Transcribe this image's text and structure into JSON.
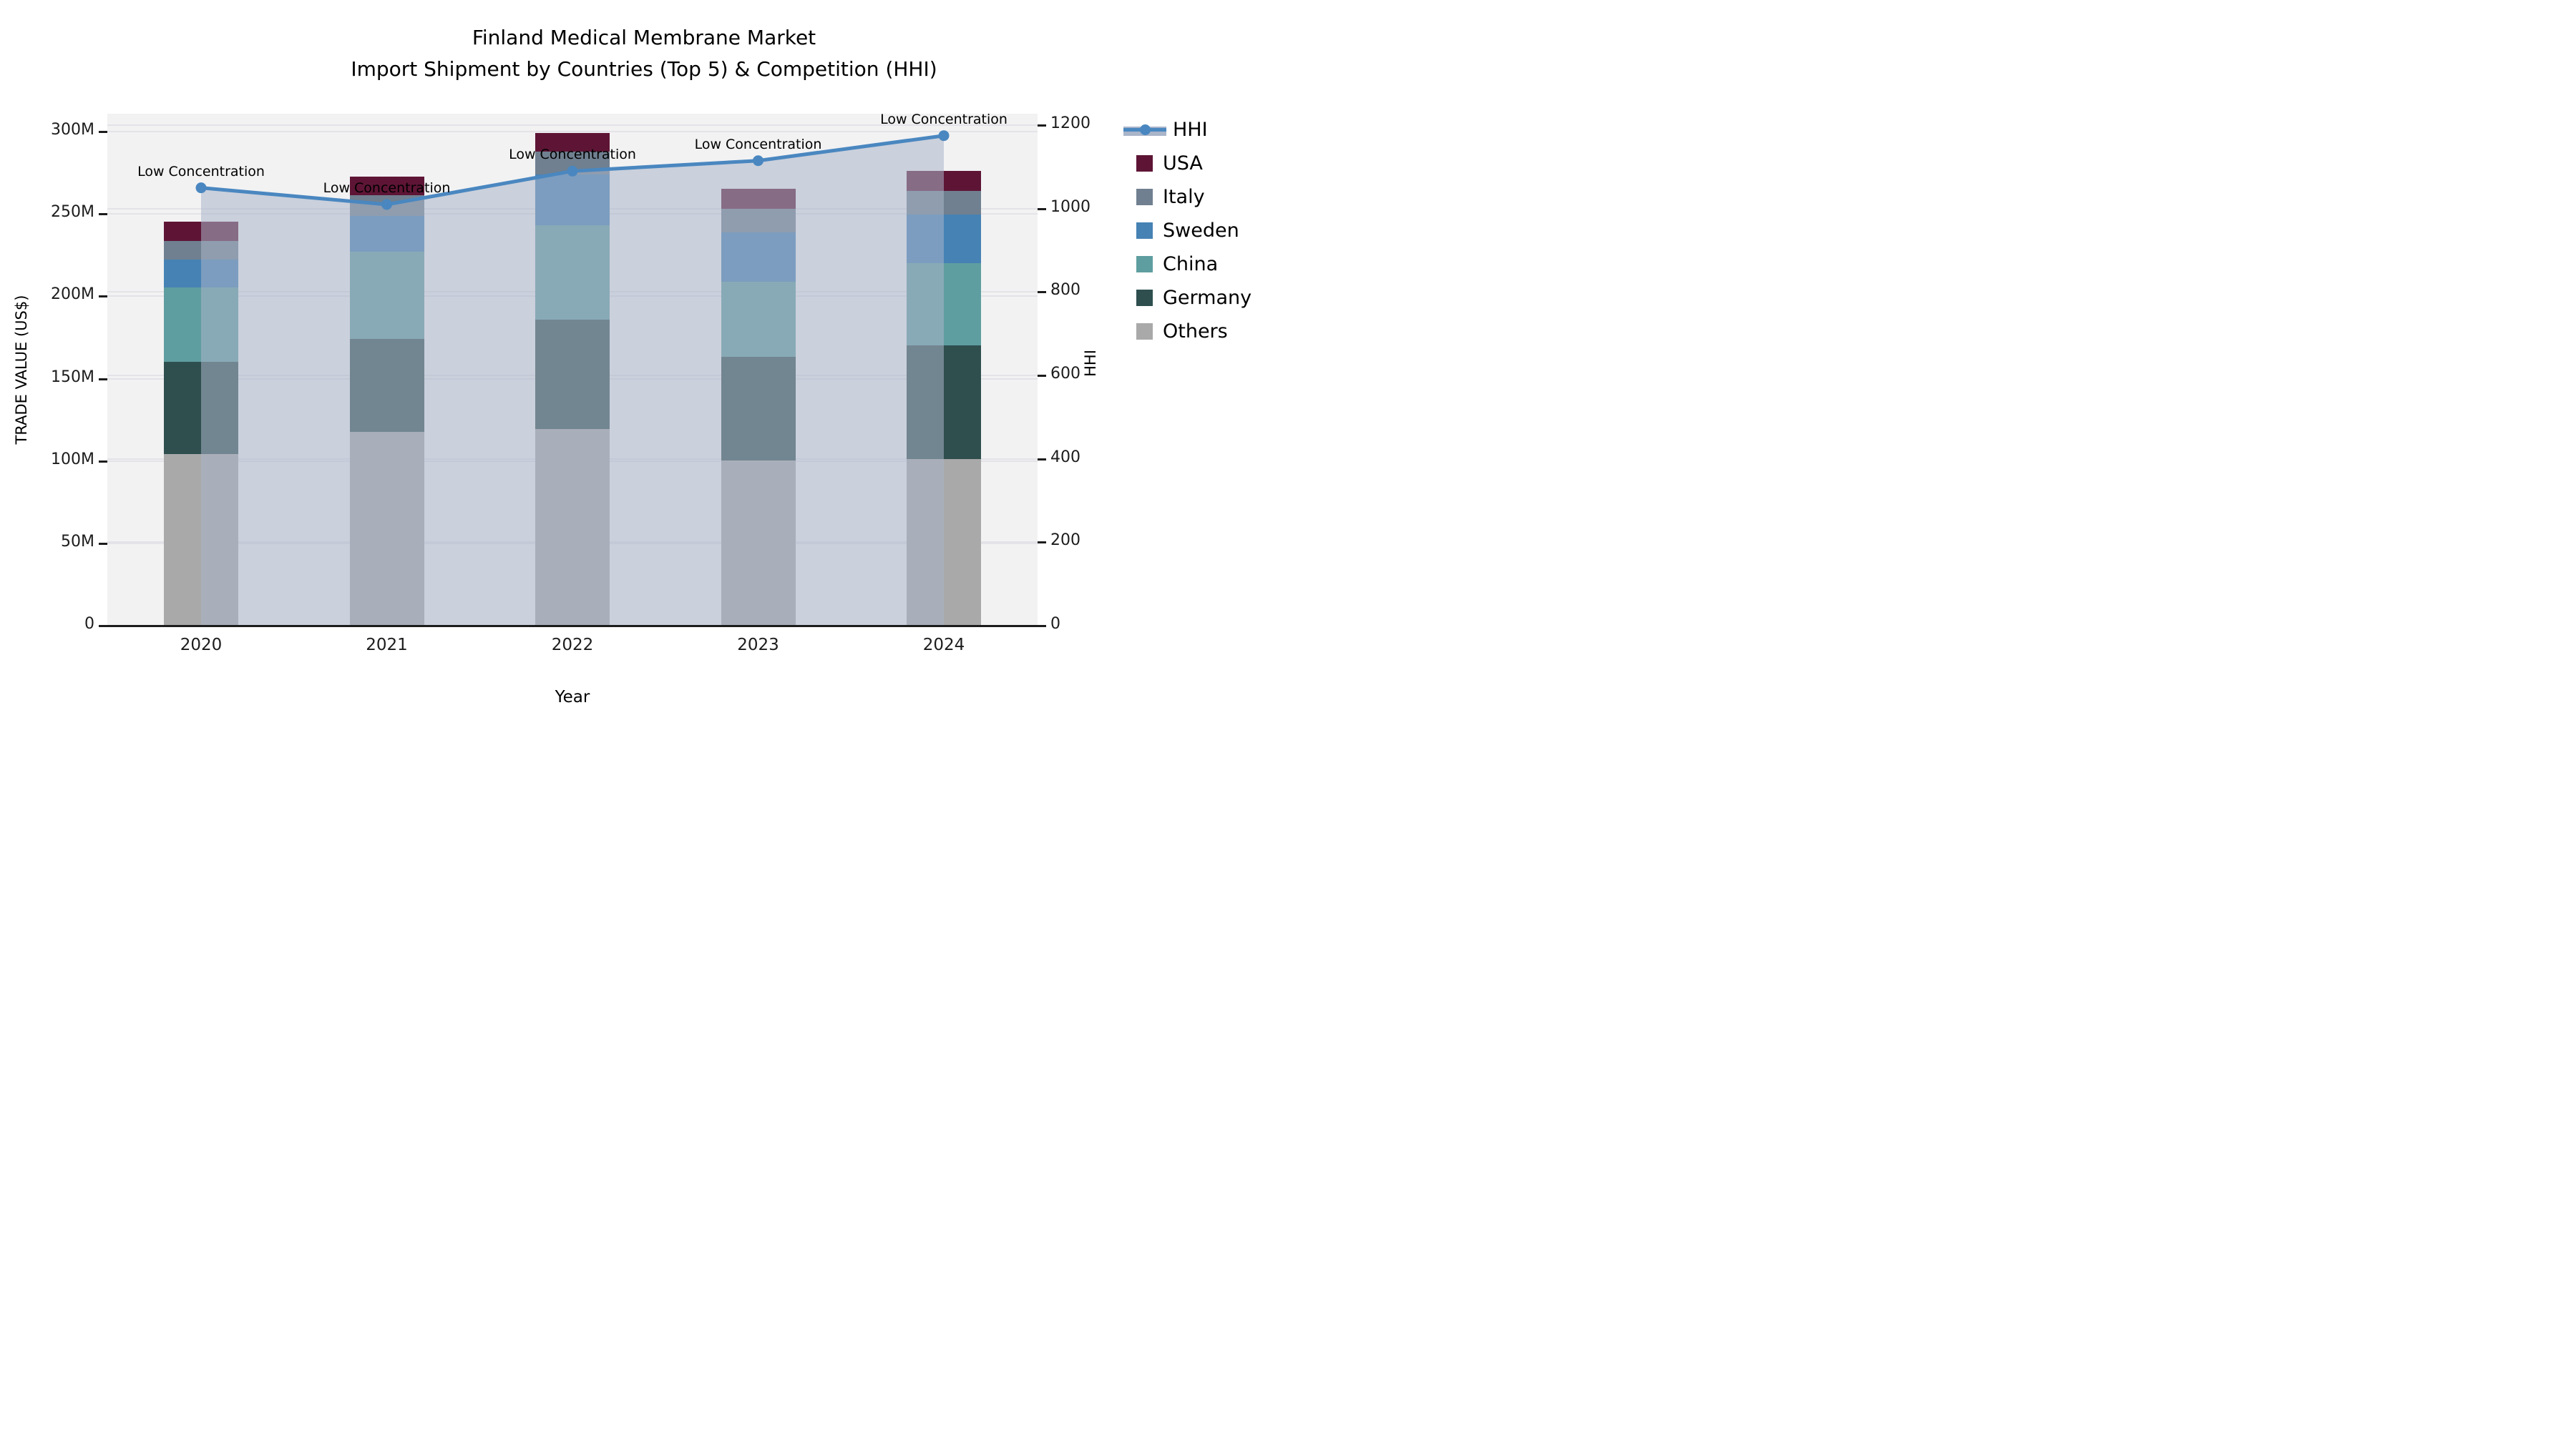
{
  "chart_data": {
    "type": "combo-stacked-bar-line",
    "title_line1": "Finland Medical Membrane Market",
    "title_line2": "Import Shipment by Countries (Top 5) & Competition (HHI)",
    "xlabel": "Year",
    "ylabel_left": "TRADE VALUE (US$)",
    "ylabel_right": "HHI",
    "categories": [
      "2020",
      "2021",
      "2022",
      "2023",
      "2024"
    ],
    "unit": "M (millions US$)",
    "stack_order_bottom_to_top": [
      "Others",
      "Germany",
      "China",
      "Sweden",
      "Italy",
      "USA"
    ],
    "series": [
      {
        "name": "USA",
        "color": "#5e1535",
        "values": [
          11.7,
          11.2,
          11.2,
          12.4,
          11.9
        ]
      },
      {
        "name": "Italy",
        "color": "#708090",
        "values": [
          11.5,
          12.6,
          13.9,
          14.3,
          14.3
        ]
      },
      {
        "name": "Sweden",
        "color": "#4682b4",
        "values": [
          16.8,
          22.0,
          30.8,
          29.8,
          29.6
        ]
      },
      {
        "name": "China",
        "color": "#5f9ea0",
        "values": [
          45.2,
          52.9,
          57.4,
          45.6,
          50.2
        ]
      },
      {
        "name": "Germany",
        "color": "#2f4f4f",
        "values": [
          56.1,
          56.5,
          66.6,
          63.1,
          68.9
        ]
      },
      {
        "name": "Others",
        "color": "#a9a9a9",
        "values": [
          104.1,
          117.6,
          119.3,
          100.2,
          101.1
        ]
      }
    ],
    "bar_totals": [
      245.4,
      272.8,
      299.2,
      265.4,
      276.0
    ],
    "line_series": {
      "name": "HHI",
      "color": "#4a87c0",
      "fill_color": "#a9b5c9",
      "fill_opacity": 0.55,
      "values": [
        1050,
        1010,
        1090,
        1115,
        1175
      ]
    },
    "annotations": [
      {
        "text": "Low Concentration",
        "category": "2020"
      },
      {
        "text": "Low Concentration",
        "category": "2021"
      },
      {
        "text": "Low Concentration",
        "category": "2022"
      },
      {
        "text": "Low Concentration",
        "category": "2023"
      },
      {
        "text": "Low Concentration",
        "category": "2024"
      }
    ],
    "y_left": {
      "tick_labels": [
        "0",
        "50M",
        "100M",
        "150M",
        "200M",
        "250M",
        "300M"
      ],
      "tick_values": [
        0,
        50,
        100,
        150,
        200,
        250,
        300
      ],
      "max": 310.9
    },
    "y_right": {
      "tick_labels": [
        "0",
        "200",
        "400",
        "600",
        "800",
        "1000",
        "1200"
      ],
      "tick_values": [
        0,
        200,
        400,
        600,
        800,
        1000,
        1200
      ],
      "max": 1227.7
    },
    "legend": {
      "items": [
        {
          "label": "HHI",
          "type": "line"
        },
        {
          "label": "USA",
          "type": "patch"
        },
        {
          "label": "Italy",
          "type": "patch"
        },
        {
          "label": "Sweden",
          "type": "patch"
        },
        {
          "label": "China",
          "type": "patch"
        },
        {
          "label": "Germany",
          "type": "patch"
        },
        {
          "label": "Others",
          "type": "patch"
        }
      ],
      "position": "right"
    },
    "style": {
      "plot_background": "#f2f2f3",
      "figure_background": "#ffffff",
      "gridline_color": "#e3e3e8",
      "spine_color": "#1c1c1c",
      "grid": "on"
    }
  }
}
